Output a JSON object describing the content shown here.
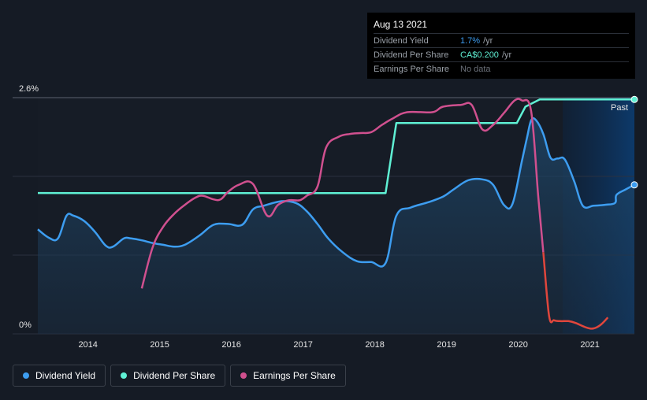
{
  "colors": {
    "background": "#151b25",
    "yield": "#3d9df0",
    "dps": "#5ff0d4",
    "eps": "#d0508f",
    "eps_negative": "#e0463c",
    "grid": "#2a3140"
  },
  "tooltip": {
    "date": "Aug 13 2021",
    "rows": [
      {
        "name": "Dividend Yield",
        "value": "1.7%",
        "unit": "/yr"
      },
      {
        "name": "Dividend Per Share",
        "value": "CA$0.200",
        "unit": "/yr"
      },
      {
        "name": "Earnings Per Share",
        "value": "No data",
        "unit": ""
      }
    ]
  },
  "past_label": "Past",
  "legend": [
    {
      "label": "Dividend Yield",
      "color": "#3d9df0"
    },
    {
      "label": "Dividend Per Share",
      "color": "#5ff0d4"
    },
    {
      "label": "Earnings Per Share",
      "color": "#d0508f"
    }
  ],
  "chart_data": {
    "type": "line",
    "x_ticks": [
      "2014",
      "2015",
      "2016",
      "2017",
      "2018",
      "2019",
      "2020",
      "2021"
    ],
    "xlim": [
      2013.3,
      2021.62
    ],
    "ylim": [
      0,
      2.6
    ],
    "y_tick_labels": [
      "2.6%",
      "0%"
    ],
    "grid": true,
    "legend_position": "bottom-left",
    "series": [
      {
        "name": "Dividend Yield",
        "area": true,
        "x": [
          2013.3,
          2013.45,
          2013.58,
          2013.7,
          2013.8,
          2013.95,
          2014.1,
          2014.25,
          2014.35,
          2014.5,
          2014.6,
          2014.75,
          2014.9,
          2015.05,
          2015.2,
          2015.35,
          2015.55,
          2015.75,
          2015.95,
          2016.15,
          2016.3,
          2016.45,
          2016.7,
          2016.9,
          2017.05,
          2017.2,
          2017.35,
          2017.55,
          2017.75,
          2017.95,
          2018.15,
          2018.3,
          2018.5,
          2018.75,
          2018.95,
          2019.1,
          2019.3,
          2019.5,
          2019.65,
          2019.8,
          2019.92,
          2020.05,
          2020.12,
          2020.18,
          2020.25,
          2020.35,
          2020.45,
          2020.55,
          2020.65,
          2020.78,
          2020.9,
          2021.05,
          2021.2,
          2021.35,
          2021.37,
          2021.5,
          2021.62
        ],
        "y": [
          1.15,
          1.06,
          1.05,
          1.3,
          1.3,
          1.24,
          1.12,
          0.97,
          0.96,
          1.05,
          1.05,
          1.03,
          1.0,
          0.98,
          0.96,
          0.98,
          1.08,
          1.2,
          1.21,
          1.2,
          1.37,
          1.41,
          1.46,
          1.44,
          1.35,
          1.21,
          1.05,
          0.9,
          0.8,
          0.79,
          0.78,
          1.3,
          1.39,
          1.45,
          1.51,
          1.59,
          1.69,
          1.7,
          1.64,
          1.42,
          1.43,
          1.9,
          2.15,
          2.35,
          2.35,
          2.2,
          1.94,
          1.93,
          1.92,
          1.68,
          1.41,
          1.41,
          1.42,
          1.44,
          1.53,
          1.59,
          1.64
        ]
      },
      {
        "name": "Dividend Per Share",
        "x": [
          2013.3,
          2014.0,
          2015.0,
          2016.0,
          2017.0,
          2018.0,
          2018.15,
          2018.3,
          2019.0,
          2019.5,
          2019.85,
          2019.98,
          2020.1,
          2020.3,
          2021.0,
          2021.62
        ],
        "y": [
          1.55,
          1.55,
          1.55,
          1.55,
          1.55,
          1.55,
          1.55,
          2.32,
          2.32,
          2.32,
          2.32,
          2.32,
          2.5,
          2.58,
          2.58,
          2.58
        ]
      },
      {
        "name": "Earnings Per Share",
        "x": [
          2014.75,
          2014.9,
          2015.05,
          2015.2,
          2015.35,
          2015.5,
          2015.6,
          2015.75,
          2015.85,
          2015.95,
          2016.1,
          2016.3,
          2016.5,
          2016.65,
          2016.8,
          2016.95,
          2017.05,
          2017.2,
          2017.32,
          2017.5,
          2017.65,
          2017.8,
          2017.95,
          2018.1,
          2018.25,
          2018.45,
          2018.8,
          2018.95,
          2019.2,
          2019.35,
          2019.5,
          2019.65,
          2019.8,
          2019.95,
          2020.05,
          2020.18,
          2020.28,
          2020.35,
          2020.43,
          2020.5,
          2020.58,
          2020.7,
          2020.8,
          2020.95,
          2021.05,
          2021.15,
          2021.25
        ],
        "y": [
          0.5,
          0.95,
          1.18,
          1.32,
          1.42,
          1.5,
          1.52,
          1.48,
          1.48,
          1.56,
          1.64,
          1.65,
          1.3,
          1.42,
          1.47,
          1.47,
          1.52,
          1.62,
          2.05,
          2.17,
          2.2,
          2.21,
          2.22,
          2.3,
          2.37,
          2.44,
          2.44,
          2.5,
          2.52,
          2.52,
          2.25,
          2.3,
          2.43,
          2.57,
          2.57,
          2.45,
          1.5,
          0.9,
          0.2,
          0.15,
          0.14,
          0.14,
          0.12,
          0.07,
          0.06,
          0.1,
          0.18
        ],
        "negative_from_x": 2020.35
      }
    ]
  }
}
